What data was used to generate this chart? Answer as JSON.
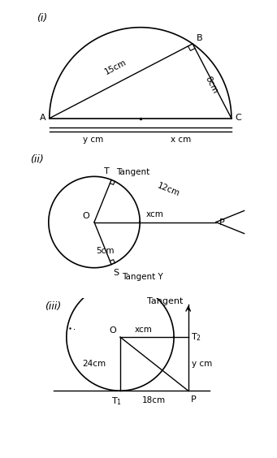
{
  "fig_width": 3.41,
  "fig_height": 5.64,
  "bg_color": "#ffffff",
  "label_i": "(i)",
  "label_ii": "(ii)",
  "label_iii": "(iii)",
  "diagram1": {
    "label_AB": "15cm",
    "label_BC": "8cm",
    "label_y": "y cm",
    "label_x": "x cm",
    "label_A": "A",
    "label_B": "B",
    "label_C": "C"
  },
  "diagram2": {
    "label_O": "O",
    "label_T": "T",
    "label_S": "S",
    "label_P": "P",
    "label_radius": "5cm",
    "label_TP": "12cm",
    "label_OP": "xcm",
    "label_tangent_top": "Tangent",
    "label_tangent_bot": "Tangent Y"
  },
  "diagram3": {
    "label_O": "O",
    "label_T1": "T₁",
    "label_T2": "T₂",
    "label_P": "P",
    "label_radius": "24cm",
    "label_x": "xcm",
    "label_y": "y cm",
    "label_18": "18cm",
    "label_tangent": "Tangent"
  }
}
